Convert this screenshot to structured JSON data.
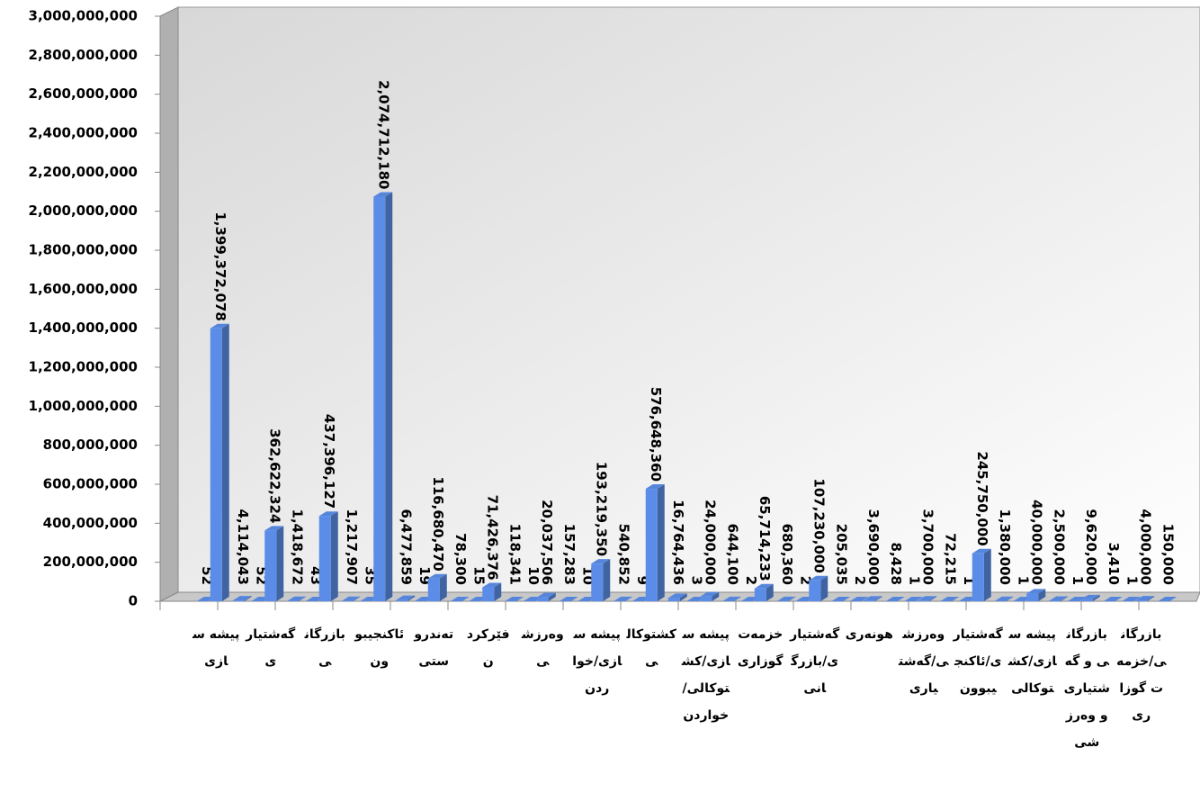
{
  "chart_data": {
    "type": "bar3d",
    "categories": [
      "پیشه سازی",
      "گەشتیاری",
      "بازرگانی",
      "ئاکنجیبوون",
      "تەندروستی",
      "فێرکردن",
      "وەرزشی",
      "پیشه سازی/خواردن",
      "کشتوکالی",
      "پیشه سازی/کشتوکالی/خواردن",
      "خزمەت گوزاری",
      "گەشتیاری/بازرگانی",
      "هونەری",
      "وەرزشی/گەشتیاری",
      "گەشتیاری/ئاکنجیبوون",
      "پیشه سازی/کشتوکالی",
      "بازرگانی و گەشتیاری و وەرزشی",
      "بازرگانی/خزمەت گوزاری"
    ],
    "series": [
      {
        "color": "#5b8de8",
        "values": [
          52,
          52,
          43,
          35,
          19,
          15,
          10,
          10,
          9,
          3,
          2,
          2,
          2,
          1,
          1,
          1,
          1,
          1
        ]
      },
      {
        "color": "#5b8de8",
        "values": [
          1399372078,
          362622324,
          437396127,
          2074712180,
          116680470,
          71426376,
          20037506,
          193219350,
          576648360,
          24000000,
          65714233,
          107230000,
          3690000,
          3700000,
          245750000,
          40000000,
          9620000,
          4000000
        ],
        "value_labels": [
          "1,399,372,078",
          "362,622,324",
          "437,396,127",
          "2,074,712,180",
          "116,680,470",
          "71,426,376",
          "20,037,506",
          "193,219,350",
          "576,648,360",
          "24,000,000",
          "65,714,233",
          "107,230,000",
          "3,690,000",
          "3,700,000",
          "245,750,000",
          "40,000,000",
          "9,620,000",
          "4,000,000"
        ]
      },
      {
        "color": "#5b8de8",
        "values": [
          4114043,
          1418672,
          1217907,
          6477859,
          78300,
          118341,
          157283,
          540852,
          16764436,
          644100,
          680360,
          205035,
          8428,
          72215,
          1380000,
          2500000,
          3410,
          150000
        ],
        "value_labels": [
          "4,114,043",
          "1,418,672",
          "1,217,907",
          "6,477,859",
          "78,300",
          "118,341",
          "157,283",
          "540,852",
          "16,764,436",
          "644,100",
          "680,360",
          "205,035",
          "8,428",
          "72,215",
          "1,380,000",
          "2,500,000",
          "3,410",
          "150,000"
        ]
      }
    ],
    "ylim": [
      0,
      3000000000
    ],
    "yticks": [
      0,
      {
        "value": 200000000,
        "label": "200,000,000"
      },
      {
        "value": 400000000,
        "label": "400,000,000"
      },
      {
        "value": 600000000,
        "label": "600,000,000"
      },
      {
        "value": 800000000,
        "label": "800,000,000"
      },
      {
        "value": 1000000000,
        "label": "1,000,000,000"
      },
      {
        "value": 1200000000,
        "label": "1,200,000,000"
      },
      {
        "value": 1400000000,
        "label": "1,400,000,000"
      },
      {
        "value": 1600000000,
        "label": "1,600,000,000"
      },
      {
        "value": 1800000000,
        "label": "1,800,000,000"
      },
      {
        "value": 2000000000,
        "label": "2,000,000,000"
      },
      {
        "value": 2200000000,
        "label": "2,200,000,000"
      },
      {
        "value": 2400000000,
        "label": "2,400,000,000"
      },
      {
        "value": 2600000000,
        "label": "2,600,000,000"
      },
      {
        "value": 2800000000,
        "label": "2,800,000,000"
      },
      {
        "value": 3000000000,
        "label": "3,000,000,000"
      }
    ]
  }
}
